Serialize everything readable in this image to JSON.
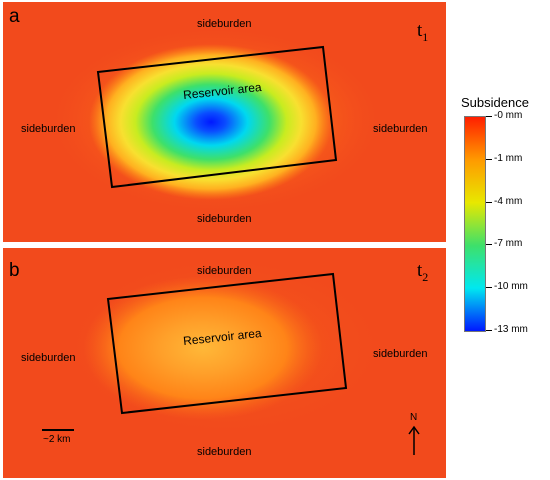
{
  "panels": [
    {
      "label": "a",
      "time_label": "t",
      "time_sub": "1",
      "sideburden_labels": [
        "sideburden",
        "sideburden",
        "sideburden",
        "sideburden"
      ],
      "reservoir_label": "Reservoir area"
    },
    {
      "label": "b",
      "time_label": "t",
      "time_sub": "2",
      "sideburden_labels": [
        "sideburden",
        "sideburden",
        "sideburden",
        "sideburden"
      ],
      "reservoir_label": "Reservoir area"
    }
  ],
  "legend": {
    "title": "Subsidence",
    "ticks": [
      "-0 mm",
      "-1 mm",
      "-4 mm",
      "-7 mm",
      "-10 mm",
      "-13 mm"
    ],
    "colors": [
      "#ff1f00",
      "#ff9a00",
      "#e8e800",
      "#3ee06a",
      "#00e8f0",
      "#0018ff"
    ]
  },
  "scale_bar": {
    "label": "~2 km"
  },
  "north_arrow": {
    "label": "N"
  },
  "colors": {
    "background": "#f24a1c",
    "outline": "#000000"
  }
}
